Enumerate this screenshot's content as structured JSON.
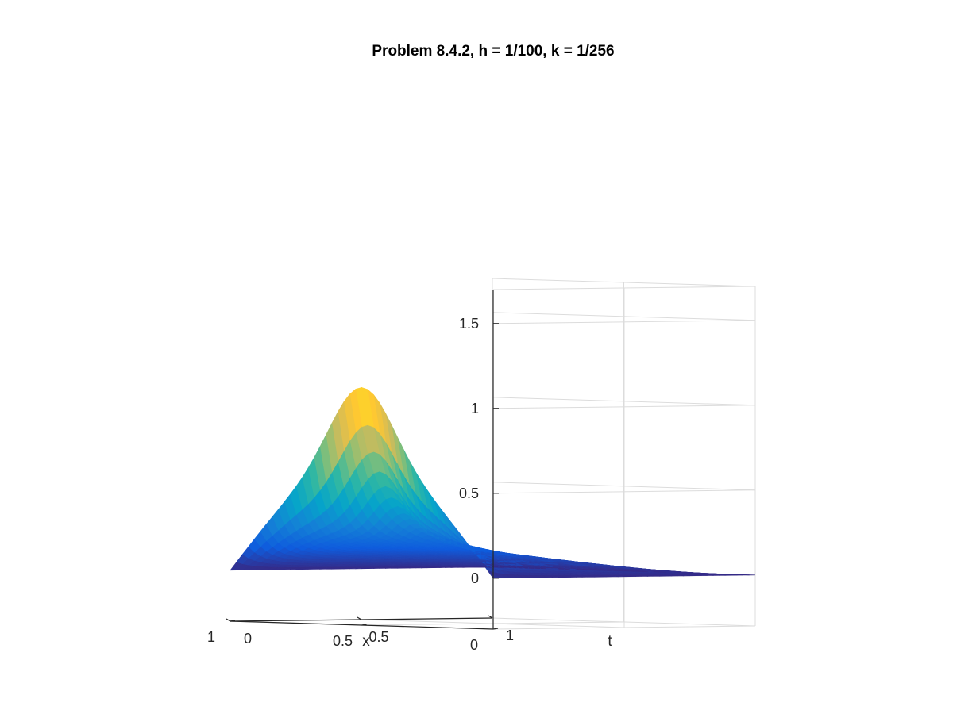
{
  "chart_data": {
    "type": "surface",
    "title": "Problem 8.4.2, h = 1/100, k = 1/256",
    "xlabel": "x",
    "tlabel": "t",
    "zlabel": "",
    "x_range": [
      0,
      1
    ],
    "t_range": [
      0,
      1
    ],
    "z_range": [
      -0.3,
      1.7
    ],
    "x_ticks": [
      {
        "value": 0,
        "label": "0"
      },
      {
        "value": 0.5,
        "label": "0.5"
      },
      {
        "value": 1,
        "label": "1"
      }
    ],
    "t_ticks": [
      {
        "value": 0,
        "label": "0"
      },
      {
        "value": 0.5,
        "label": "0.5"
      },
      {
        "value": 1,
        "label": "1"
      }
    ],
    "z_ticks": [
      {
        "value": 0,
        "label": "0"
      },
      {
        "value": 0.5,
        "label": "0.5"
      },
      {
        "value": 1,
        "label": "1"
      },
      {
        "value": 1.5,
        "label": "1.5"
      }
    ],
    "grid": true,
    "colormap": "parula",
    "colormap_stops": [
      "#352a87",
      "#0f5cdd",
      "#1481d6",
      "#06a4ca",
      "#2eb7a4",
      "#87bf77",
      "#d1bb59",
      "#fec832",
      "#f9fb0e"
    ],
    "peak_value": 1.1,
    "surface_samples": {
      "t": [
        0,
        0.25,
        0.5,
        0.75,
        1
      ],
      "x": [
        0,
        0.25,
        0.5,
        0.75,
        1
      ],
      "u_at_t0": [
        0,
        0.6,
        1.1,
        0.6,
        0
      ],
      "u_at_x_half": [
        1.1,
        0.28,
        0.16,
        0.06,
        0
      ]
    }
  }
}
